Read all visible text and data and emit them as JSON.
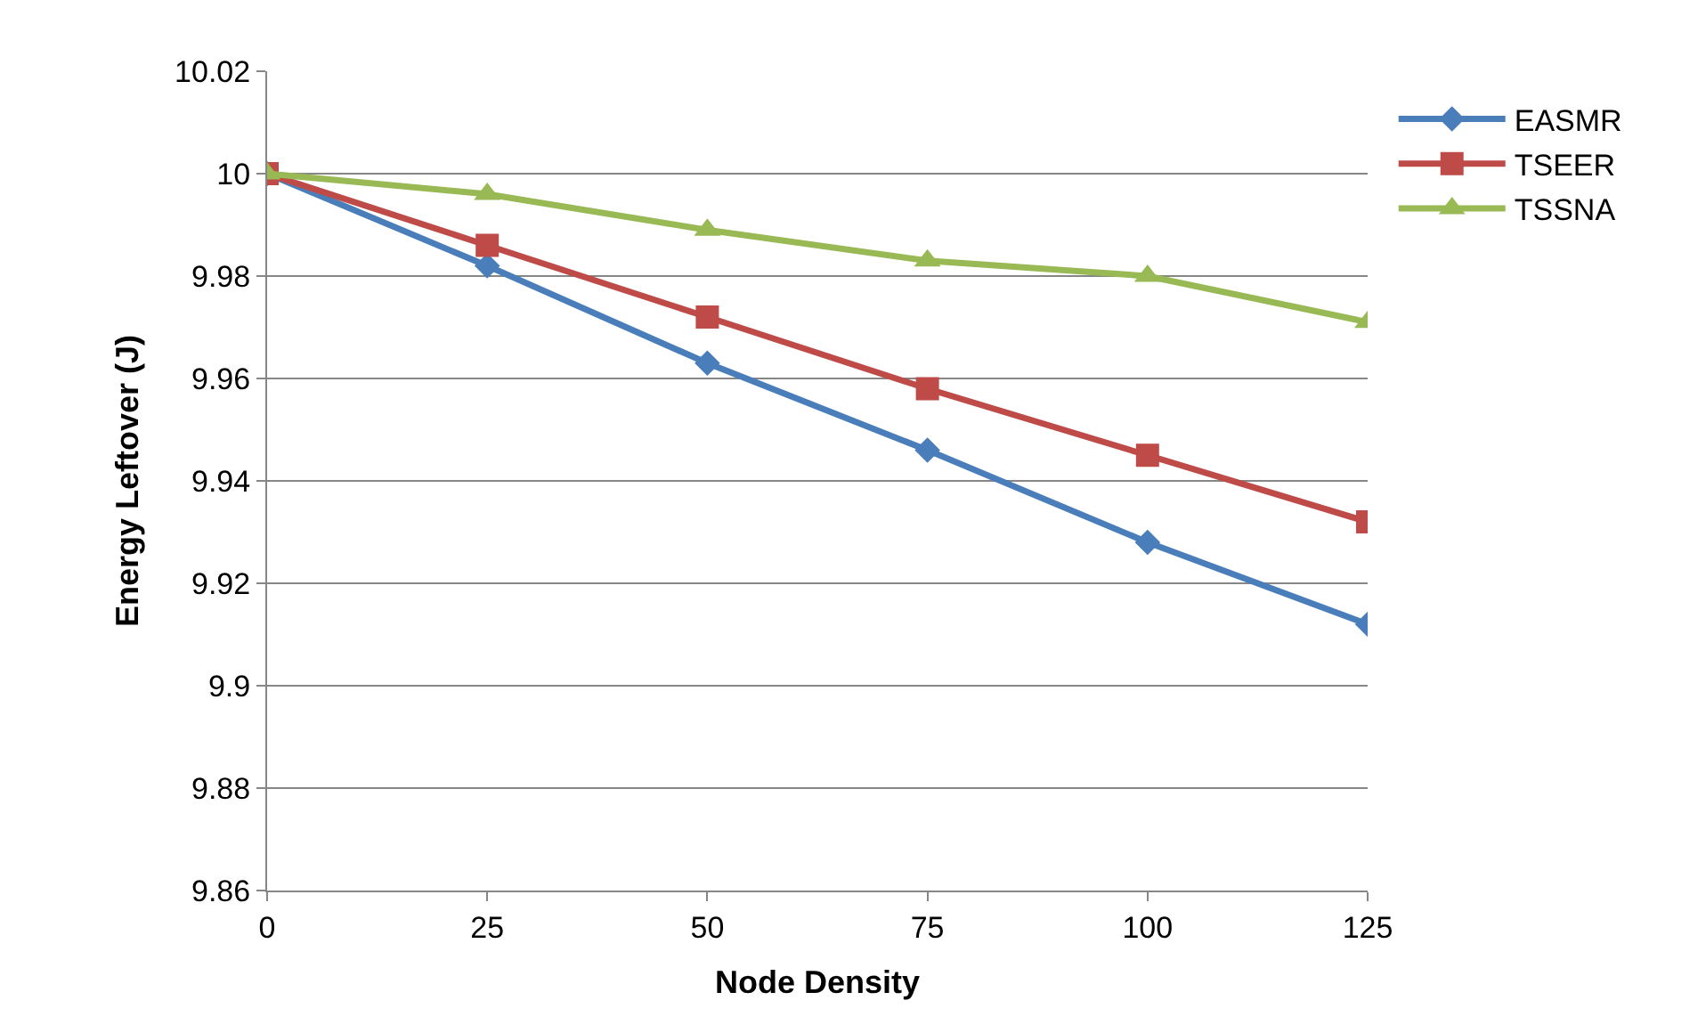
{
  "chart_data": {
    "type": "line",
    "xlabel": "Node Density",
    "ylabel": "Energy Leftover (J)",
    "x": [
      0,
      25,
      50,
      75,
      100,
      125
    ],
    "series": [
      {
        "name": "EASMR",
        "color": "#4a7ebb",
        "marker": "diamond",
        "values": [
          10,
          9.982,
          9.963,
          9.946,
          9.928,
          9.912
        ]
      },
      {
        "name": "TSEER",
        "color": "#be4b48",
        "marker": "square",
        "values": [
          10,
          9.986,
          9.972,
          9.958,
          9.945,
          9.932
        ]
      },
      {
        "name": "TSSNA",
        "color": "#98b954",
        "marker": "triangle",
        "values": [
          10,
          9.996,
          9.989,
          9.983,
          9.98,
          9.971
        ]
      }
    ],
    "xlim": [
      0,
      125
    ],
    "xticks": [
      0,
      25,
      50,
      75,
      100,
      125
    ],
    "ylim": [
      9.86,
      10.02
    ],
    "yticks": [
      {
        "value": 9.86,
        "label": "9.86"
      },
      {
        "value": 9.88,
        "label": "9.88"
      },
      {
        "value": 9.9,
        "label": "9.9"
      },
      {
        "value": 9.92,
        "label": "9.92"
      },
      {
        "value": 9.94,
        "label": "9.94"
      },
      {
        "value": 9.96,
        "label": "9.96"
      },
      {
        "value": 9.98,
        "label": "9.98"
      },
      {
        "value": 10,
        "label": "10"
      },
      {
        "value": 10.02,
        "label": "10.02"
      }
    ],
    "grid": "y",
    "legend": "top right",
    "line_style": "solid"
  }
}
